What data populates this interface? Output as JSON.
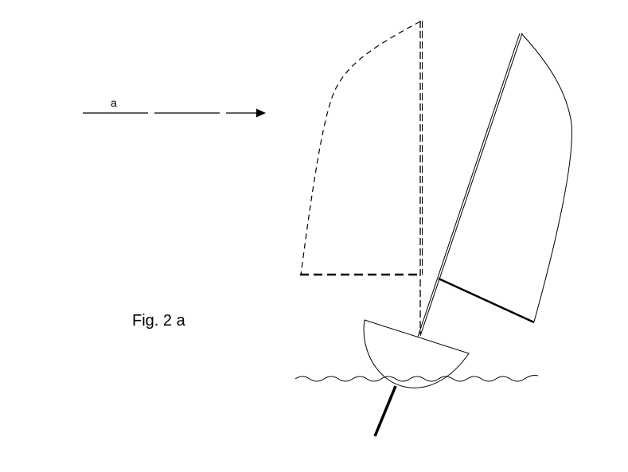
{
  "figure": {
    "wind_label": "a",
    "caption": "Fig. 2 a"
  },
  "colors": {
    "stroke": "#000000",
    "background": "#ffffff"
  }
}
